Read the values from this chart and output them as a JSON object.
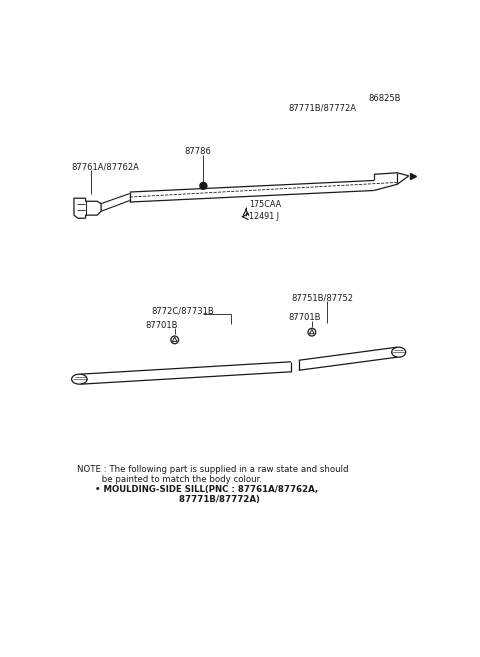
{
  "bg_color": "#ffffff",
  "line_color": "#1a1a1a",
  "text_color": "#1a1a1a",
  "part_number_top_right": "86825B",
  "label_top_moulding": "87771B/87772A",
  "label_clip_top": "87786",
  "label_left_top": "87761A/87762A",
  "label_175CAA": "175CAA",
  "label_12491": "12491 J",
  "label_bottom_right_grp": "87751B/87752",
  "label_8772C": "8772C/87731B",
  "label_87701B_left": "87701B",
  "label_87701B_right": "87701B",
  "note_line1": "NOTE : The following part is supplied in a raw state and should",
  "note_line2": "         be painted to match the body colour.",
  "note_line3": "      • MOULDING-SIDE SILL(PNC : 87761A/87762A,",
  "note_line4": "                                  87771B/87772A)"
}
